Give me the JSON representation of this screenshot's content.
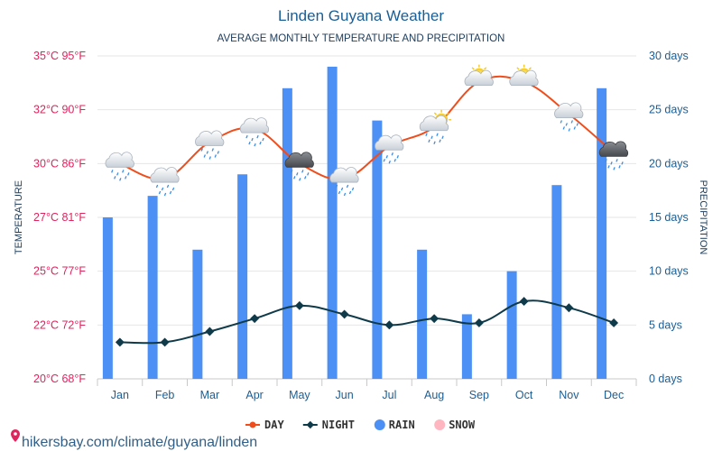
{
  "title": "Linden Guyana Weather",
  "subtitle": "AVERAGE MONTHLY TEMPERATURE AND PRECIPITATION",
  "source": "hikersbay.com/climate/guyana/linden",
  "colors": {
    "day": "#f04d1c",
    "night": "#0f3a4a",
    "rain": "#4d90f5",
    "snow": "#ffb6c1",
    "left_axis": "#e0245e",
    "right_axis": "#1a5e96"
  },
  "chart_data": {
    "type": "bar+line",
    "categories": [
      "Jan",
      "Feb",
      "Mar",
      "Apr",
      "May",
      "Jun",
      "Jul",
      "Aug",
      "Sep",
      "Oct",
      "Nov",
      "Dec"
    ],
    "series": [
      {
        "name": "DAY",
        "type": "line",
        "axis": "temperature",
        "values": [
          30.0,
          29.3,
          31.0,
          31.6,
          30.0,
          29.3,
          30.8,
          31.7,
          33.8,
          33.8,
          32.3,
          30.5
        ]
      },
      {
        "name": "NIGHT",
        "type": "line",
        "axis": "temperature",
        "values": [
          21.7,
          21.7,
          22.2,
          22.8,
          23.4,
          23.0,
          22.5,
          22.8,
          22.6,
          23.6,
          23.3,
          22.6
        ]
      },
      {
        "name": "RAIN",
        "type": "bar",
        "axis": "precipitation",
        "values": [
          15,
          17,
          12,
          19,
          27,
          29,
          24,
          12,
          6,
          10,
          18,
          27
        ]
      }
    ],
    "weather_icons": [
      "rain-cloud",
      "rain-cloud",
      "rain-cloud",
      "rain-cloud",
      "storm-cloud",
      "rain-cloud",
      "rain-cloud",
      "sun-rain-cloud",
      "sun-cloud",
      "sun-cloud",
      "rain-cloud",
      "storm-cloud"
    ],
    "legend": [
      "DAY",
      "NIGHT",
      "RAIN",
      "SNOW"
    ],
    "legend_position": "bottom-center",
    "y_left": {
      "label": "TEMPERATURE",
      "range": [
        20,
        35
      ],
      "ticks": [
        20,
        22.5,
        25,
        27.5,
        30,
        32.5,
        35
      ],
      "tick_labels": [
        "20°C 68°F",
        "22°C 72°F",
        "25°C 77°F",
        "27°C 81°F",
        "30°C 86°F",
        "32°C 90°F",
        "35°C 95°F"
      ]
    },
    "y_right": {
      "label": "PRECIPITATION",
      "range": [
        0,
        30
      ],
      "ticks": [
        0,
        5,
        10,
        15,
        20,
        25,
        30
      ],
      "tick_labels": [
        "0 days",
        "5 days",
        "10 days",
        "15 days",
        "20 days",
        "25 days",
        "30 days"
      ]
    },
    "grid": true
  }
}
